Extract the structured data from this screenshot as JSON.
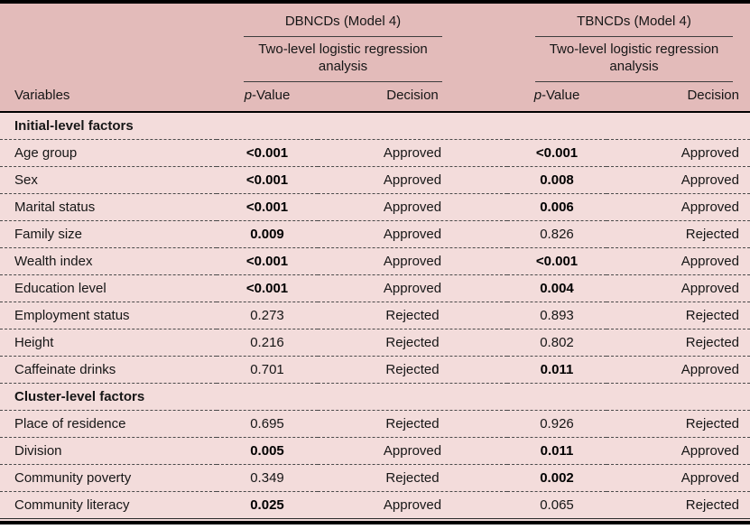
{
  "table": {
    "colors": {
      "header_bg": "#e3bbba",
      "body_bg": "#f3dcdb",
      "heavy_rule": "#000000",
      "thin_rule": "#3d3d3d"
    },
    "groups": [
      {
        "title": "DBNCDs (Model 4)",
        "subtitle": "Two-level logistic regression analysis"
      },
      {
        "title": "TBNCDs (Model 4)",
        "subtitle": "Two-level logistic regression analysis"
      }
    ],
    "columns": {
      "variables": "Variables",
      "p_italic": "p",
      "p_rest": "-Value",
      "decision": "Decision"
    },
    "rows": [
      {
        "type": "section",
        "label": "Initial-level factors"
      },
      {
        "type": "data",
        "variable": "Age group",
        "cells": [
          {
            "p": "<0.001",
            "bold": true,
            "decision": "Approved"
          },
          {
            "p": "<0.001",
            "bold": true,
            "decision": "Approved"
          }
        ]
      },
      {
        "type": "data",
        "variable": "Sex",
        "cells": [
          {
            "p": "<0.001",
            "bold": true,
            "decision": "Approved"
          },
          {
            "p": "0.008",
            "bold": true,
            "decision": "Approved"
          }
        ]
      },
      {
        "type": "data",
        "variable": "Marital status",
        "cells": [
          {
            "p": "<0.001",
            "bold": true,
            "decision": "Approved"
          },
          {
            "p": "0.006",
            "bold": true,
            "decision": "Approved"
          }
        ]
      },
      {
        "type": "data",
        "variable": "Family size",
        "cells": [
          {
            "p": "0.009",
            "bold": true,
            "decision": "Approved"
          },
          {
            "p": "0.826",
            "bold": false,
            "decision": "Rejected"
          }
        ]
      },
      {
        "type": "data",
        "variable": "Wealth index",
        "cells": [
          {
            "p": "<0.001",
            "bold": true,
            "decision": "Approved"
          },
          {
            "p": "<0.001",
            "bold": true,
            "decision": "Approved"
          }
        ]
      },
      {
        "type": "data",
        "variable": "Education level",
        "cells": [
          {
            "p": "<0.001",
            "bold": true,
            "decision": "Approved"
          },
          {
            "p": "0.004",
            "bold": true,
            "decision": "Approved"
          }
        ]
      },
      {
        "type": "data",
        "variable": "Employment status",
        "cells": [
          {
            "p": "0.273",
            "bold": false,
            "decision": "Rejected"
          },
          {
            "p": "0.893",
            "bold": false,
            "decision": "Rejected"
          }
        ]
      },
      {
        "type": "data",
        "variable": "Height",
        "cells": [
          {
            "p": "0.216",
            "bold": false,
            "decision": "Rejected"
          },
          {
            "p": "0.802",
            "bold": false,
            "decision": "Rejected"
          }
        ]
      },
      {
        "type": "data",
        "variable": "Caffeinate drinks",
        "cells": [
          {
            "p": "0.701",
            "bold": false,
            "decision": "Rejected"
          },
          {
            "p": "0.011",
            "bold": true,
            "decision": "Approved"
          }
        ]
      },
      {
        "type": "section",
        "label": "Cluster-level factors"
      },
      {
        "type": "data",
        "variable": "Place of residence",
        "cells": [
          {
            "p": "0.695",
            "bold": false,
            "decision": "Rejected"
          },
          {
            "p": "0.926",
            "bold": false,
            "decision": "Rejected"
          }
        ]
      },
      {
        "type": "data",
        "variable": "Division",
        "cells": [
          {
            "p": "0.005",
            "bold": true,
            "decision": "Approved"
          },
          {
            "p": "0.011",
            "bold": true,
            "decision": "Approved"
          }
        ]
      },
      {
        "type": "data",
        "variable": "Community poverty",
        "cells": [
          {
            "p": "0.349",
            "bold": false,
            "decision": "Rejected"
          },
          {
            "p": "0.002",
            "bold": true,
            "decision": "Approved"
          }
        ]
      },
      {
        "type": "data",
        "variable": "Community literacy",
        "cells": [
          {
            "p": "0.025",
            "bold": true,
            "decision": "Approved"
          },
          {
            "p": "0.065",
            "bold": false,
            "decision": "Rejected"
          }
        ]
      }
    ]
  }
}
